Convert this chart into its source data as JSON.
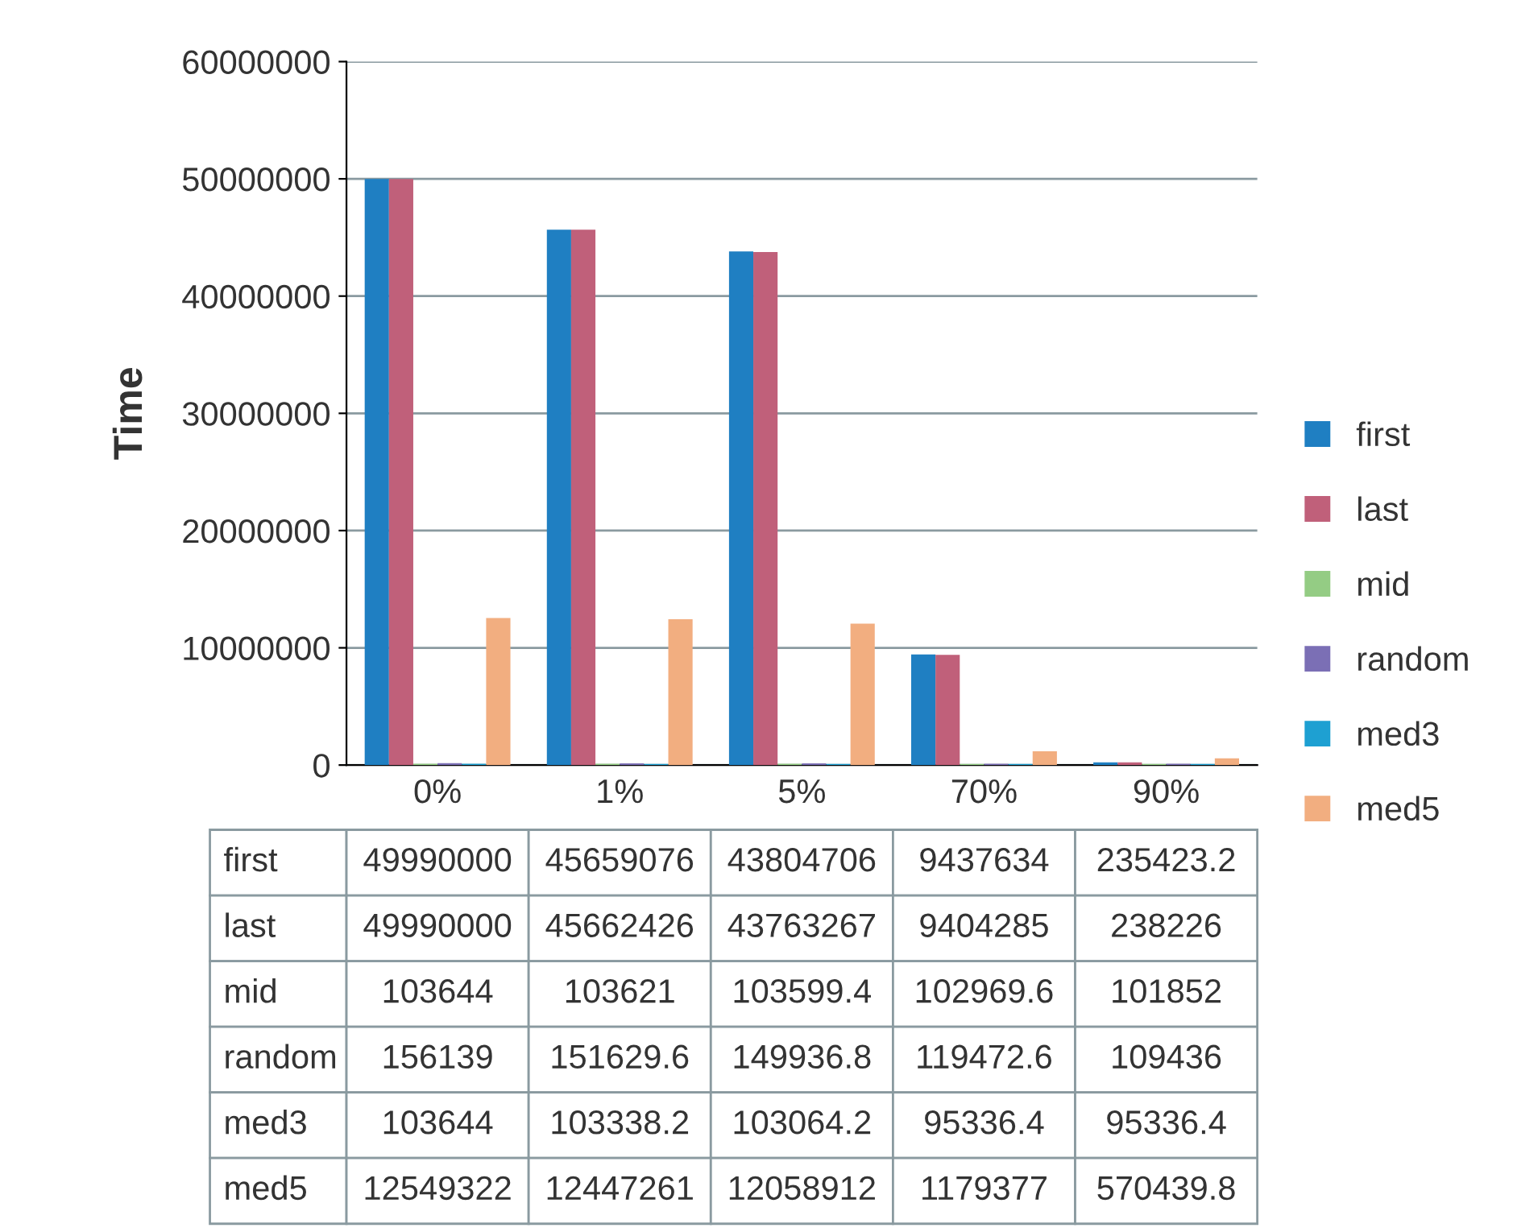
{
  "chart_data": {
    "type": "bar",
    "ylabel": "Time",
    "categories": [
      "0%",
      "1%",
      "5%",
      "70%",
      "90%"
    ],
    "series": [
      {
        "name": "first",
        "color": "#1f7fc2",
        "values": [
          49990000,
          45659076,
          43804706,
          9437634,
          235423.2
        ]
      },
      {
        "name": "last",
        "color": "#c0607a",
        "values": [
          49990000,
          45662426,
          43763267,
          9404285,
          238226
        ]
      },
      {
        "name": "mid",
        "color": "#94cc84",
        "values": [
          103644,
          103621,
          103599.4,
          102969.6,
          101852
        ]
      },
      {
        "name": "random",
        "color": "#7b6fb5",
        "values": [
          156139,
          151629.6,
          149936.8,
          119472.6,
          109436
        ]
      },
      {
        "name": "med3",
        "color": "#1ea0d2",
        "values": [
          103644,
          103338.2,
          103064.2,
          95336.4,
          95336.4
        ]
      },
      {
        "name": "med5",
        "color": "#f2ae80",
        "values": [
          12549322,
          12447261,
          12058912,
          1179377,
          570439.8
        ]
      }
    ],
    "ylim": [
      0,
      60000000
    ],
    "yticks": [
      0,
      10000000,
      20000000,
      30000000,
      40000000,
      50000000,
      60000000
    ],
    "grid": "y",
    "legend": "right",
    "data_labels": true
  }
}
